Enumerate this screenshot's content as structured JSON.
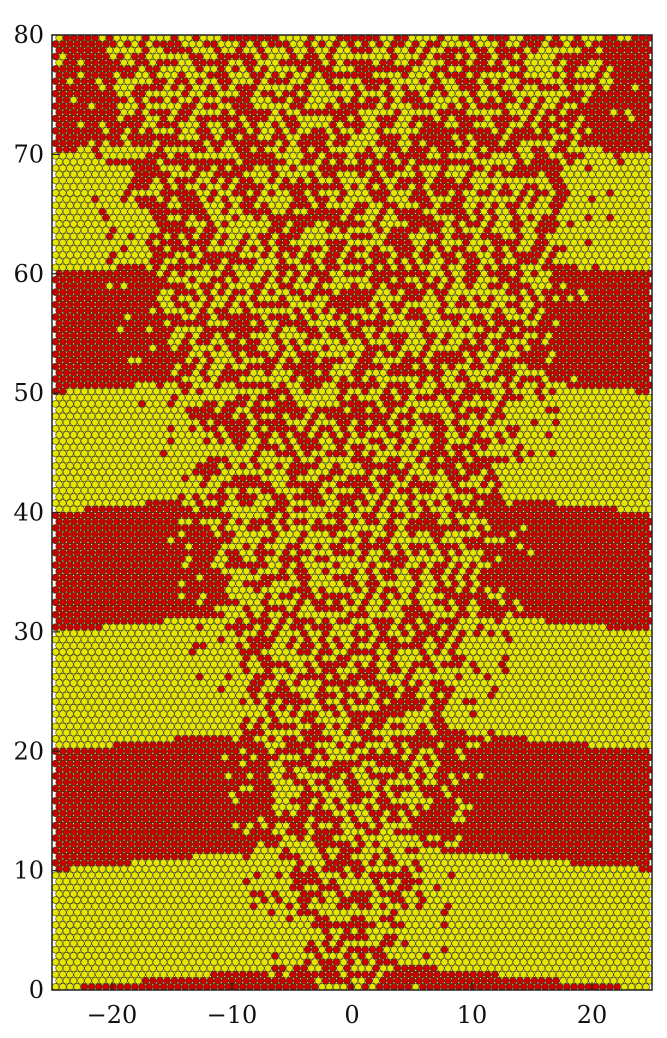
{
  "chart_data": {
    "type": "scatter",
    "title": "",
    "xlabel": "",
    "ylabel": "",
    "xlim": [
      -25,
      25
    ],
    "ylim": [
      0,
      80
    ],
    "grid": false,
    "x_ticks": [
      -20,
      -10,
      0,
      10,
      20
    ],
    "x_tick_labels": [
      "−20",
      "−10",
      "0",
      "10",
      "20"
    ],
    "y_ticks": [
      0,
      10,
      20,
      30,
      40,
      50,
      60,
      70,
      80
    ],
    "y_tick_labels": [
      "0",
      "10",
      "20",
      "30",
      "40",
      "50",
      "60",
      "70",
      "80"
    ],
    "marker": "hexagonal-lattice-disc",
    "cell_states": [
      {
        "state": "red",
        "color": "#cc0000"
      },
      {
        "state": "yellow",
        "color": "#e6e600"
      }
    ],
    "outer_bands": [
      {
        "y_from": 0,
        "y_to": 10,
        "state": "yellow"
      },
      {
        "y_from": 10,
        "y_to": 20,
        "state": "red"
      },
      {
        "y_from": 20,
        "y_to": 30,
        "state": "yellow"
      },
      {
        "y_from": 30,
        "y_to": 40,
        "state": "red"
      },
      {
        "y_from": 40,
        "y_to": 50,
        "state": "yellow"
      },
      {
        "y_from": 50,
        "y_to": 60,
        "state": "red"
      },
      {
        "y_from": 60,
        "y_to": 70,
        "state": "yellow"
      },
      {
        "y_from": 70,
        "y_to": 80,
        "state": "red"
      }
    ],
    "disordered_wedge": {
      "apex": [
        0,
        0
      ],
      "half_width_at_top": 18
    }
  }
}
